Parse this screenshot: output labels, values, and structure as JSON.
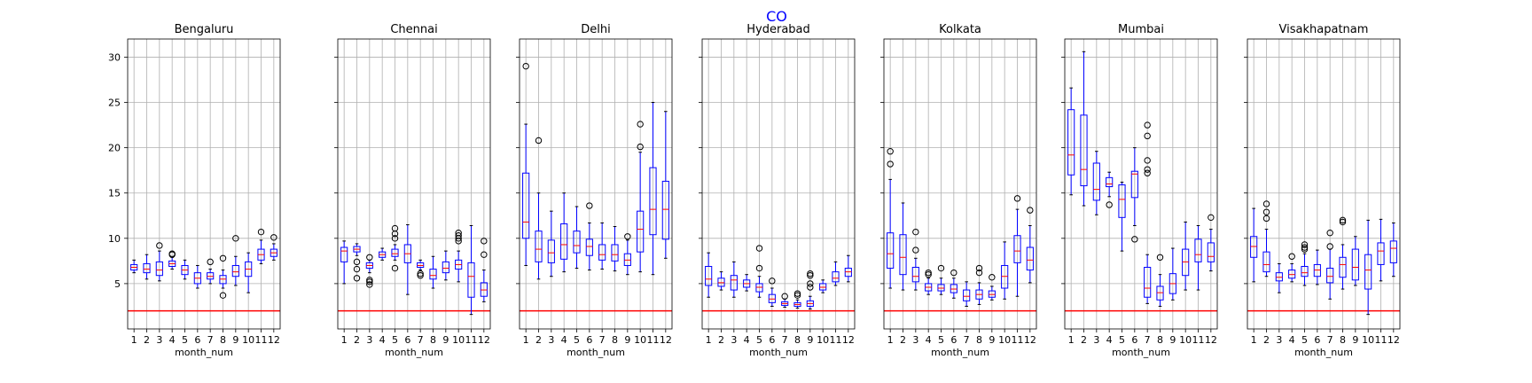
{
  "figure": {
    "title": "CO",
    "title_color": "#0000ff"
  },
  "style": {
    "box_color": "#0000ff",
    "median_color": "#ff0000",
    "threshold_color": "#ff0000",
    "grid_color": "#b0b0b0",
    "flier_color": "#000000"
  },
  "chart_data": {
    "type": "box",
    "ylim": [
      0,
      32
    ],
    "yticks": [
      5,
      10,
      15,
      20,
      25,
      30
    ],
    "xticks": [
      "1",
      "2",
      "3",
      "4",
      "5",
      "6",
      "7",
      "8",
      "9",
      "10",
      "11",
      "12"
    ],
    "xlabel": "month_num",
    "threshold": 2,
    "grid": true,
    "panels": [
      {
        "name": "Bengaluru",
        "boxes": [
          {
            "month": 1,
            "whislo": 6.2,
            "q1": 6.5,
            "med": 6.8,
            "q3": 7.1,
            "whishi": 7.6,
            "fliers": []
          },
          {
            "month": 2,
            "whislo": 5.5,
            "q1": 6.2,
            "med": 6.6,
            "q3": 7.2,
            "whishi": 8.2,
            "fliers": []
          },
          {
            "month": 3,
            "whislo": 5.3,
            "q1": 5.9,
            "med": 6.5,
            "q3": 7.4,
            "whishi": 8.6,
            "fliers": [
              9.2
            ]
          },
          {
            "month": 4,
            "whislo": 6.6,
            "q1": 6.9,
            "med": 7.2,
            "q3": 7.5,
            "whishi": 7.9,
            "fliers": [
              8.2,
              8.3
            ]
          },
          {
            "month": 5,
            "whislo": 5.5,
            "q1": 6.0,
            "med": 6.5,
            "q3": 7.0,
            "whishi": 7.6,
            "fliers": []
          },
          {
            "month": 6,
            "whislo": 4.5,
            "q1": 5.0,
            "med": 5.6,
            "q3": 6.2,
            "whishi": 7.0,
            "fliers": []
          },
          {
            "month": 7,
            "whislo": 5.0,
            "q1": 5.5,
            "med": 5.8,
            "q3": 6.2,
            "whishi": 6.6,
            "fliers": [
              7.4
            ]
          },
          {
            "month": 8,
            "whislo": 4.5,
            "q1": 5.0,
            "med": 5.5,
            "q3": 5.9,
            "whishi": 6.5,
            "fliers": [
              3.7,
              7.8
            ]
          },
          {
            "month": 9,
            "whislo": 4.8,
            "q1": 5.8,
            "med": 6.3,
            "q3": 7.0,
            "whishi": 8.0,
            "fliers": [
              10.0
            ]
          },
          {
            "month": 10,
            "whislo": 4.0,
            "q1": 5.8,
            "med": 6.6,
            "q3": 7.4,
            "whishi": 8.4,
            "fliers": []
          },
          {
            "month": 11,
            "whislo": 7.2,
            "q1": 7.6,
            "med": 8.2,
            "q3": 8.8,
            "whishi": 9.8,
            "fliers": [
              10.7
            ]
          },
          {
            "month": 12,
            "whislo": 7.6,
            "q1": 8.0,
            "med": 8.4,
            "q3": 8.8,
            "whishi": 9.4,
            "fliers": [
              10.1
            ]
          }
        ]
      },
      {
        "name": "Chennai",
        "boxes": [
          {
            "month": 1,
            "whislo": 5.0,
            "q1": 7.4,
            "med": 8.6,
            "q3": 9.0,
            "whishi": 9.7,
            "fliers": []
          },
          {
            "month": 2,
            "whislo": 8.1,
            "q1": 8.5,
            "med": 8.8,
            "q3": 9.1,
            "whishi": 9.4,
            "fliers": [
              5.6,
              6.6,
              7.4
            ]
          },
          {
            "month": 3,
            "whislo": 6.2,
            "q1": 6.7,
            "med": 7.0,
            "q3": 7.3,
            "whishi": 7.6,
            "fliers": [
              4.9,
              5.2,
              5.4,
              7.9
            ]
          },
          {
            "month": 4,
            "whislo": 7.6,
            "q1": 7.9,
            "med": 8.2,
            "q3": 8.5,
            "whishi": 8.9,
            "fliers": []
          },
          {
            "month": 5,
            "whislo": 7.6,
            "q1": 8.0,
            "med": 8.3,
            "q3": 8.8,
            "whishi": 9.3,
            "fliers": [
              6.7,
              10.0,
              10.5,
              11.1
            ]
          },
          {
            "month": 6,
            "whislo": 3.8,
            "q1": 7.3,
            "med": 8.3,
            "q3": 9.3,
            "whishi": 11.5,
            "fliers": []
          },
          {
            "month": 7,
            "whislo": 6.5,
            "q1": 6.8,
            "med": 7.0,
            "q3": 7.3,
            "whishi": 7.6,
            "fliers": [
              5.9,
              6.1
            ]
          },
          {
            "month": 8,
            "whislo": 4.5,
            "q1": 5.5,
            "med": 5.9,
            "q3": 6.6,
            "whishi": 8.0,
            "fliers": []
          },
          {
            "month": 9,
            "whislo": 5.4,
            "q1": 6.2,
            "med": 6.7,
            "q3": 7.4,
            "whishi": 8.6,
            "fliers": []
          },
          {
            "month": 10,
            "whislo": 5.2,
            "q1": 6.6,
            "med": 7.1,
            "q3": 7.6,
            "whishi": 8.6,
            "fliers": [
              9.7,
              10.0,
              10.3,
              10.6
            ]
          },
          {
            "month": 11,
            "whislo": 1.6,
            "q1": 3.5,
            "med": 5.8,
            "q3": 7.3,
            "whishi": 11.4,
            "fliers": []
          },
          {
            "month": 12,
            "whislo": 3.0,
            "q1": 3.6,
            "med": 4.3,
            "q3": 5.1,
            "whishi": 6.5,
            "fliers": [
              8.2,
              9.7
            ]
          }
        ]
      },
      {
        "name": "Delhi",
        "boxes": [
          {
            "month": 1,
            "whislo": 7.0,
            "q1": 10.0,
            "med": 11.8,
            "q3": 17.2,
            "whishi": 22.6,
            "fliers": [
              29.0
            ]
          },
          {
            "month": 2,
            "whislo": 5.5,
            "q1": 7.4,
            "med": 8.8,
            "q3": 10.8,
            "whishi": 15.0,
            "fliers": [
              20.8
            ]
          },
          {
            "month": 3,
            "whislo": 5.8,
            "q1": 7.3,
            "med": 8.4,
            "q3": 9.8,
            "whishi": 13.0,
            "fliers": []
          },
          {
            "month": 4,
            "whislo": 6.3,
            "q1": 7.7,
            "med": 9.3,
            "q3": 11.6,
            "whishi": 15.0,
            "fliers": []
          },
          {
            "month": 5,
            "whislo": 6.7,
            "q1": 8.4,
            "med": 9.2,
            "q3": 10.8,
            "whishi": 13.5,
            "fliers": []
          },
          {
            "month": 6,
            "whislo": 6.5,
            "q1": 8.1,
            "med": 9.1,
            "q3": 9.9,
            "whishi": 11.7,
            "fliers": [
              13.6
            ]
          },
          {
            "month": 7,
            "whislo": 6.6,
            "q1": 7.6,
            "med": 8.2,
            "q3": 9.3,
            "whishi": 11.7,
            "fliers": []
          },
          {
            "month": 8,
            "whislo": 6.4,
            "q1": 7.5,
            "med": 8.2,
            "q3": 9.3,
            "whishi": 11.3,
            "fliers": []
          },
          {
            "month": 9,
            "whislo": 6.0,
            "q1": 7.0,
            "med": 7.6,
            "q3": 8.3,
            "whishi": 9.8,
            "fliers": [
              10.2
            ]
          },
          {
            "month": 10,
            "whislo": 6.3,
            "q1": 8.5,
            "med": 11.0,
            "q3": 13.0,
            "whishi": 19.5,
            "fliers": [
              20.1,
              22.6
            ]
          },
          {
            "month": 11,
            "whislo": 6.0,
            "q1": 10.4,
            "med": 13.2,
            "q3": 17.8,
            "whishi": 25.0,
            "fliers": []
          },
          {
            "month": 12,
            "whislo": 7.8,
            "q1": 9.9,
            "med": 13.2,
            "q3": 16.3,
            "whishi": 24.0,
            "fliers": []
          }
        ]
      },
      {
        "name": "Hyderabad",
        "boxes": [
          {
            "month": 1,
            "whislo": 3.5,
            "q1": 4.8,
            "med": 5.5,
            "q3": 6.9,
            "whishi": 8.4,
            "fliers": []
          },
          {
            "month": 2,
            "whislo": 4.3,
            "q1": 4.7,
            "med": 5.1,
            "q3": 5.6,
            "whishi": 6.3,
            "fliers": []
          },
          {
            "month": 3,
            "whislo": 3.5,
            "q1": 4.3,
            "med": 5.4,
            "q3": 5.9,
            "whishi": 7.4,
            "fliers": []
          },
          {
            "month": 4,
            "whislo": 4.2,
            "q1": 4.6,
            "med": 5.0,
            "q3": 5.4,
            "whishi": 6.0,
            "fliers": []
          },
          {
            "month": 5,
            "whislo": 3.5,
            "q1": 4.1,
            "med": 4.6,
            "q3": 5.0,
            "whishi": 5.8,
            "fliers": [
              6.7,
              8.9
            ]
          },
          {
            "month": 6,
            "whislo": 2.5,
            "q1": 2.9,
            "med": 3.3,
            "q3": 3.8,
            "whishi": 4.5,
            "fliers": [
              5.3
            ]
          },
          {
            "month": 7,
            "whislo": 2.4,
            "q1": 2.6,
            "med": 2.8,
            "q3": 3.0,
            "whishi": 3.3,
            "fliers": [
              3.6
            ]
          },
          {
            "month": 8,
            "whislo": 2.3,
            "q1": 2.5,
            "med": 2.7,
            "q3": 2.9,
            "whishi": 3.2,
            "fliers": [
              3.7,
              3.9
            ]
          },
          {
            "month": 9,
            "whislo": 2.2,
            "q1": 2.5,
            "med": 2.8,
            "q3": 3.1,
            "whishi": 3.6,
            "fliers": [
              4.6,
              5.0,
              5.9,
              6.1
            ]
          },
          {
            "month": 10,
            "whislo": 4.0,
            "q1": 4.3,
            "med": 4.6,
            "q3": 5.0,
            "whishi": 5.4,
            "fliers": []
          },
          {
            "month": 11,
            "whislo": 4.8,
            "q1": 5.2,
            "med": 5.6,
            "q3": 6.3,
            "whishi": 7.4,
            "fliers": []
          },
          {
            "month": 12,
            "whislo": 5.2,
            "q1": 5.8,
            "med": 6.3,
            "q3": 6.7,
            "whishi": 8.1,
            "fliers": []
          }
        ]
      },
      {
        "name": "Kolkata",
        "boxes": [
          {
            "month": 1,
            "whislo": 4.5,
            "q1": 6.7,
            "med": 8.3,
            "q3": 10.6,
            "whishi": 16.5,
            "fliers": [
              18.2,
              19.6
            ]
          },
          {
            "month": 2,
            "whislo": 4.3,
            "q1": 6.0,
            "med": 7.9,
            "q3": 10.4,
            "whishi": 13.9,
            "fliers": []
          },
          {
            "month": 3,
            "whislo": 4.3,
            "q1": 5.2,
            "med": 5.8,
            "q3": 6.8,
            "whishi": 7.8,
            "fliers": [
              8.7,
              10.7
            ]
          },
          {
            "month": 4,
            "whislo": 3.8,
            "q1": 4.2,
            "med": 4.6,
            "q3": 5.0,
            "whishi": 5.6,
            "fliers": [
              6.0,
              6.2
            ]
          },
          {
            "month": 5,
            "whislo": 3.8,
            "q1": 4.2,
            "med": 4.5,
            "q3": 4.9,
            "whishi": 5.6,
            "fliers": [
              6.7
            ]
          },
          {
            "month": 6,
            "whislo": 3.4,
            "q1": 4.0,
            "med": 4.4,
            "q3": 4.9,
            "whishi": 5.6,
            "fliers": [
              6.2
            ]
          },
          {
            "month": 7,
            "whislo": 2.5,
            "q1": 3.1,
            "med": 3.6,
            "q3": 4.3,
            "whishi": 5.2,
            "fliers": []
          },
          {
            "month": 8,
            "whislo": 2.7,
            "q1": 3.3,
            "med": 3.8,
            "q3": 4.3,
            "whishi": 5.1,
            "fliers": [
              6.2,
              6.7
            ]
          },
          {
            "month": 9,
            "whislo": 3.2,
            "q1": 3.5,
            "med": 3.8,
            "q3": 4.2,
            "whishi": 4.7,
            "fliers": [
              5.7
            ]
          },
          {
            "month": 10,
            "whislo": 3.3,
            "q1": 4.5,
            "med": 5.8,
            "q3": 7.0,
            "whishi": 9.6,
            "fliers": []
          },
          {
            "month": 11,
            "whislo": 3.6,
            "q1": 7.3,
            "med": 8.6,
            "q3": 10.3,
            "whishi": 13.2,
            "fliers": [
              14.4
            ]
          },
          {
            "month": 12,
            "whislo": 5.1,
            "q1": 6.5,
            "med": 7.6,
            "q3": 9.0,
            "whishi": 11.4,
            "fliers": [
              13.1
            ]
          }
        ]
      },
      {
        "name": "Mumbai",
        "boxes": [
          {
            "month": 1,
            "whislo": 14.8,
            "q1": 17.0,
            "med": 19.2,
            "q3": 24.2,
            "whishi": 26.6,
            "fliers": []
          },
          {
            "month": 2,
            "whislo": 13.6,
            "q1": 15.8,
            "med": 17.6,
            "q3": 23.6,
            "whishi": 30.6,
            "fliers": []
          },
          {
            "month": 3,
            "whislo": 12.6,
            "q1": 14.2,
            "med": 15.4,
            "q3": 18.3,
            "whishi": 19.6,
            "fliers": []
          },
          {
            "month": 4,
            "whislo": 14.6,
            "q1": 15.7,
            "med": 16.0,
            "q3": 16.7,
            "whishi": 17.3,
            "fliers": [
              13.7
            ]
          },
          {
            "month": 5,
            "whislo": 8.6,
            "q1": 12.3,
            "med": 14.3,
            "q3": 15.9,
            "whishi": 16.2,
            "fliers": []
          },
          {
            "month": 6,
            "whislo": 11.4,
            "q1": 14.5,
            "med": 17.1,
            "q3": 17.4,
            "whishi": 20.0,
            "fliers": [
              9.9
            ]
          },
          {
            "month": 7,
            "whislo": 2.8,
            "q1": 3.5,
            "med": 4.5,
            "q3": 6.8,
            "whishi": 8.2,
            "fliers": [
              17.2,
              17.6,
              18.6,
              21.3,
              22.5
            ]
          },
          {
            "month": 8,
            "whislo": 2.5,
            "q1": 3.2,
            "med": 4.0,
            "q3": 4.7,
            "whishi": 6.0,
            "fliers": [
              7.9
            ]
          },
          {
            "month": 9,
            "whislo": 3.2,
            "q1": 3.9,
            "med": 5.0,
            "q3": 6.1,
            "whishi": 8.9,
            "fliers": []
          },
          {
            "month": 10,
            "whislo": 4.3,
            "q1": 5.9,
            "med": 7.4,
            "q3": 8.8,
            "whishi": 11.8,
            "fliers": []
          },
          {
            "month": 11,
            "whislo": 4.3,
            "q1": 7.4,
            "med": 8.2,
            "q3": 9.9,
            "whishi": 11.4,
            "fliers": []
          },
          {
            "month": 12,
            "whislo": 6.4,
            "q1": 7.4,
            "med": 8.0,
            "q3": 9.5,
            "whishi": 11.0,
            "fliers": [
              12.3
            ]
          }
        ]
      },
      {
        "name": "Visakhapatnam",
        "boxes": [
          {
            "month": 1,
            "whislo": 5.2,
            "q1": 7.9,
            "med": 9.1,
            "q3": 10.2,
            "whishi": 13.3,
            "fliers": []
          },
          {
            "month": 2,
            "whislo": 5.8,
            "q1": 6.3,
            "med": 7.1,
            "q3": 8.5,
            "whishi": 11.0,
            "fliers": [
              12.2,
              12.9,
              13.8
            ]
          },
          {
            "month": 3,
            "whislo": 4.0,
            "q1": 5.3,
            "med": 5.7,
            "q3": 6.2,
            "whishi": 7.2,
            "fliers": []
          },
          {
            "month": 4,
            "whislo": 5.2,
            "q1": 5.6,
            "med": 6.0,
            "q3": 6.5,
            "whishi": 7.2,
            "fliers": [
              8.0
            ]
          },
          {
            "month": 5,
            "whislo": 4.8,
            "q1": 5.8,
            "med": 6.2,
            "q3": 6.9,
            "whishi": 8.3,
            "fliers": [
              8.8,
              9.0,
              9.3
            ]
          },
          {
            "month": 6,
            "whislo": 4.9,
            "q1": 5.8,
            "med": 6.5,
            "q3": 7.1,
            "whishi": 8.7,
            "fliers": []
          },
          {
            "month": 7,
            "whislo": 3.3,
            "q1": 5.1,
            "med": 5.8,
            "q3": 6.7,
            "whishi": 8.8,
            "fliers": [
              9.1,
              10.6
            ]
          },
          {
            "month": 8,
            "whislo": 4.4,
            "q1": 5.7,
            "med": 7.1,
            "q3": 7.9,
            "whishi": 9.3,
            "fliers": [
              11.8,
              12.0
            ]
          },
          {
            "month": 9,
            "whislo": 4.8,
            "q1": 5.4,
            "med": 6.8,
            "q3": 8.8,
            "whishi": 10.2,
            "fliers": []
          },
          {
            "month": 10,
            "whislo": 1.6,
            "q1": 4.4,
            "med": 6.5,
            "q3": 8.2,
            "whishi": 12.0,
            "fliers": []
          },
          {
            "month": 11,
            "whislo": 5.3,
            "q1": 7.1,
            "med": 8.6,
            "q3": 9.5,
            "whishi": 12.1,
            "fliers": []
          },
          {
            "month": 12,
            "whislo": 5.8,
            "q1": 7.3,
            "med": 8.9,
            "q3": 9.7,
            "whishi": 11.7,
            "fliers": []
          }
        ]
      }
    ]
  }
}
